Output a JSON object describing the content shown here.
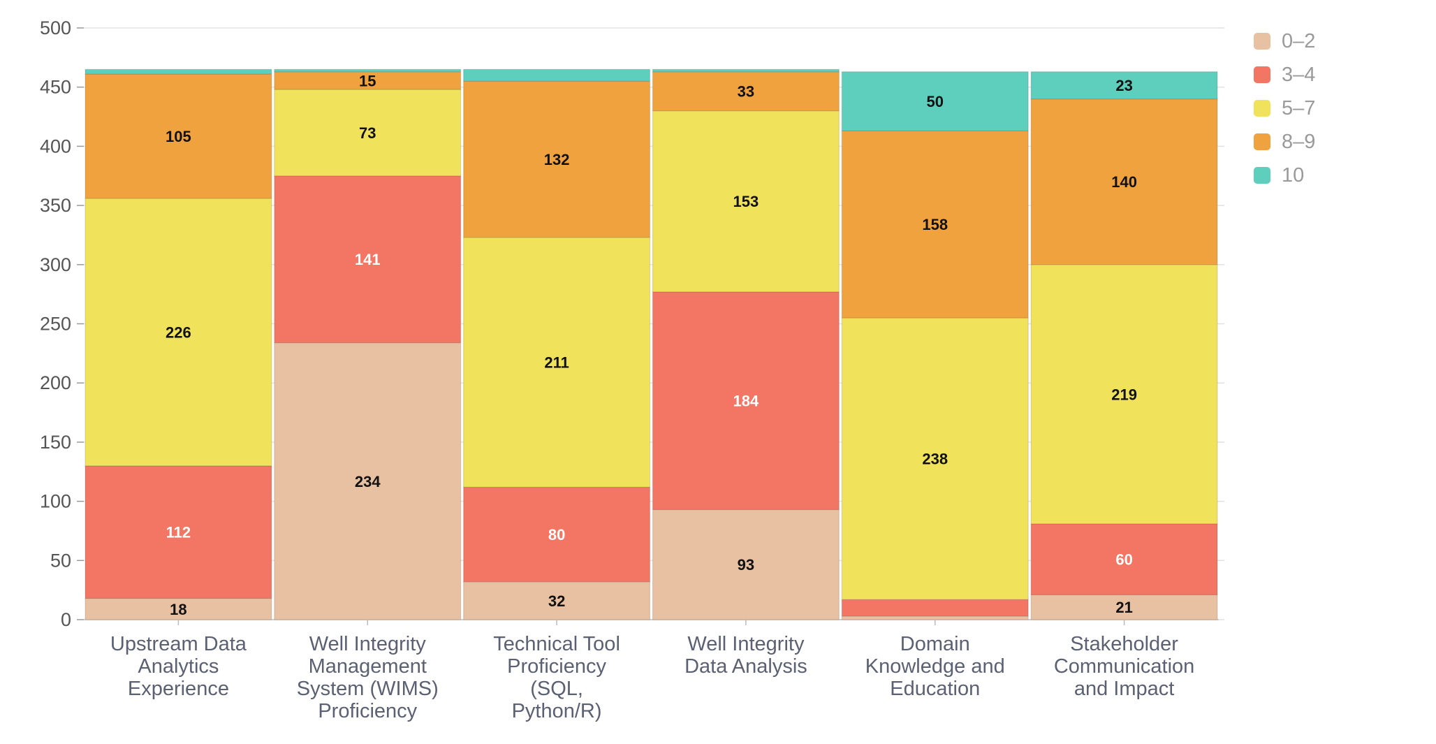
{
  "chart_data": {
    "type": "bar",
    "stacked": true,
    "title": "",
    "xlabel": "",
    "ylabel": "",
    "ylim": [
      0,
      500
    ],
    "yticks": [
      0,
      50,
      100,
      150,
      200,
      250,
      300,
      350,
      400,
      450,
      500
    ],
    "grid": true,
    "legend_position": "right",
    "categories": [
      [
        "Upstream Data",
        "Analytics",
        "Experience"
      ],
      [
        "Well Integrity",
        "Management",
        "System (WIMS)",
        "Proficiency"
      ],
      [
        "Technical Tool",
        "Proficiency",
        "(SQL,",
        "Python/R)"
      ],
      [
        "Well Integrity",
        "Data Analysis"
      ],
      [
        "Domain",
        "Knowledge and",
        "Education"
      ],
      [
        "Stakeholder",
        "Communication",
        "and Impact"
      ]
    ],
    "series": [
      {
        "name": "0–2",
        "color": "#e8c0a2",
        "label_color": "#111111",
        "values": [
          18,
          234,
          32,
          93,
          3,
          21
        ]
      },
      {
        "name": "3–4",
        "color": "#f37563",
        "label_color": "#ffffff",
        "values": [
          112,
          141,
          80,
          184,
          14,
          60
        ]
      },
      {
        "name": "5–7",
        "color": "#f1e25b",
        "label_color": "#111111",
        "values": [
          226,
          73,
          211,
          153,
          238,
          219
        ]
      },
      {
        "name": "8–9",
        "color": "#f0a23f",
        "label_color": "#111111",
        "values": [
          105,
          15,
          132,
          33,
          158,
          140
        ]
      },
      {
        "name": "10",
        "color": "#5ecfbd",
        "label_color": "#111111",
        "values": [
          4,
          2,
          10,
          2,
          50,
          23
        ]
      }
    ],
    "label_min_value": 15
  }
}
